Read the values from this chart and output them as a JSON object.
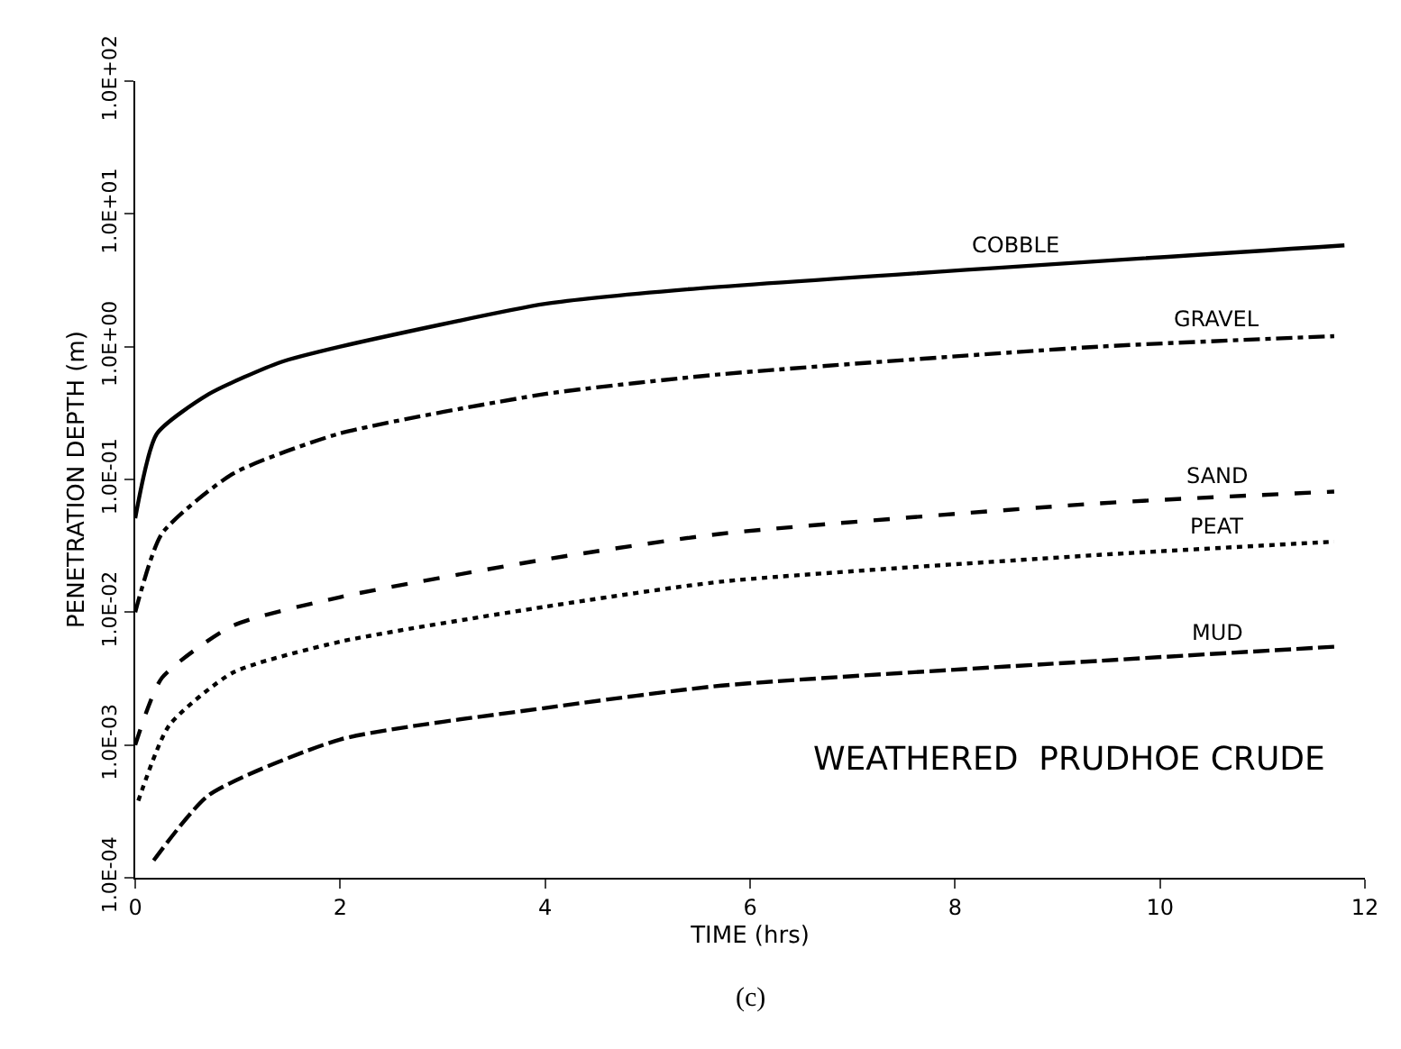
{
  "chart_data": {
    "type": "line",
    "xlabel": "TIME (hrs)",
    "ylabel": "PENETRATION DEPTH (m)",
    "log": "y",
    "legend": false,
    "marker": "none",
    "xlim": [
      0,
      12
    ],
    "xticks": [
      0,
      2,
      4,
      6,
      8,
      10,
      12
    ],
    "ylim": [
      0.0001,
      100
    ],
    "yticks": [
      {
        "value": 0.0001,
        "label": "1.0E-04"
      },
      {
        "value": 0.001,
        "label": "1.0E-03"
      },
      {
        "value": 0.01,
        "label": "1.0E-02"
      },
      {
        "value": 0.1,
        "label": "1.0E-01"
      },
      {
        "value": 1,
        "label": "1.0E+00"
      },
      {
        "value": 10,
        "label": "1.0E+01"
      },
      {
        "value": 100,
        "label": "1.0E+02"
      }
    ],
    "series": [
      {
        "name": "COBBLE",
        "color": "#000000",
        "line_style": "solid",
        "x": [
          0,
          0.21,
          0.72,
          1.41,
          2,
          4,
          5.38,
          11.8
        ],
        "values": [
          0.051,
          0.22,
          0.44,
          0.76,
          1.0,
          2.1,
          2.7,
          5.8
        ]
      },
      {
        "name": "GRAVEL",
        "color": "#000000",
        "line_style": "dashdot",
        "x": [
          0,
          0.26,
          0.95,
          1.98,
          4,
          5.72,
          9.4,
          11.7
        ],
        "values": [
          0.01,
          0.039,
          0.11,
          0.22,
          0.44,
          0.62,
          1.0,
          1.2
        ]
      },
      {
        "name": "SAND",
        "color": "#000000",
        "line_style": "dashed",
        "x": [
          0,
          0.26,
          0.95,
          2,
          4,
          5.72,
          9.4,
          11.7
        ],
        "values": [
          0.001,
          0.0032,
          0.0079,
          0.013,
          0.025,
          0.039,
          0.066,
          0.081
        ]
      },
      {
        "name": "PEAT",
        "color": "#000000",
        "line_style": "dotted",
        "x": [
          0.03,
          0.33,
          0.95,
          2,
          4,
          5.72,
          9.4,
          11.7
        ],
        "values": [
          0.00038,
          0.0014,
          0.0035,
          0.006,
          0.011,
          0.017,
          0.027,
          0.034
        ]
      },
      {
        "name": "MUD",
        "color": "#000000",
        "line_style": "longdash",
        "x": [
          0.18,
          0.72,
          2,
          4,
          5.72,
          9.4,
          11.7
        ],
        "values": [
          0.000135,
          0.00042,
          0.0011,
          0.0019,
          0.0028,
          0.0043,
          0.0055
        ]
      }
    ],
    "annotations": [
      "WEATHERED  PRUDHOE CRUDE",
      "(c)"
    ]
  }
}
